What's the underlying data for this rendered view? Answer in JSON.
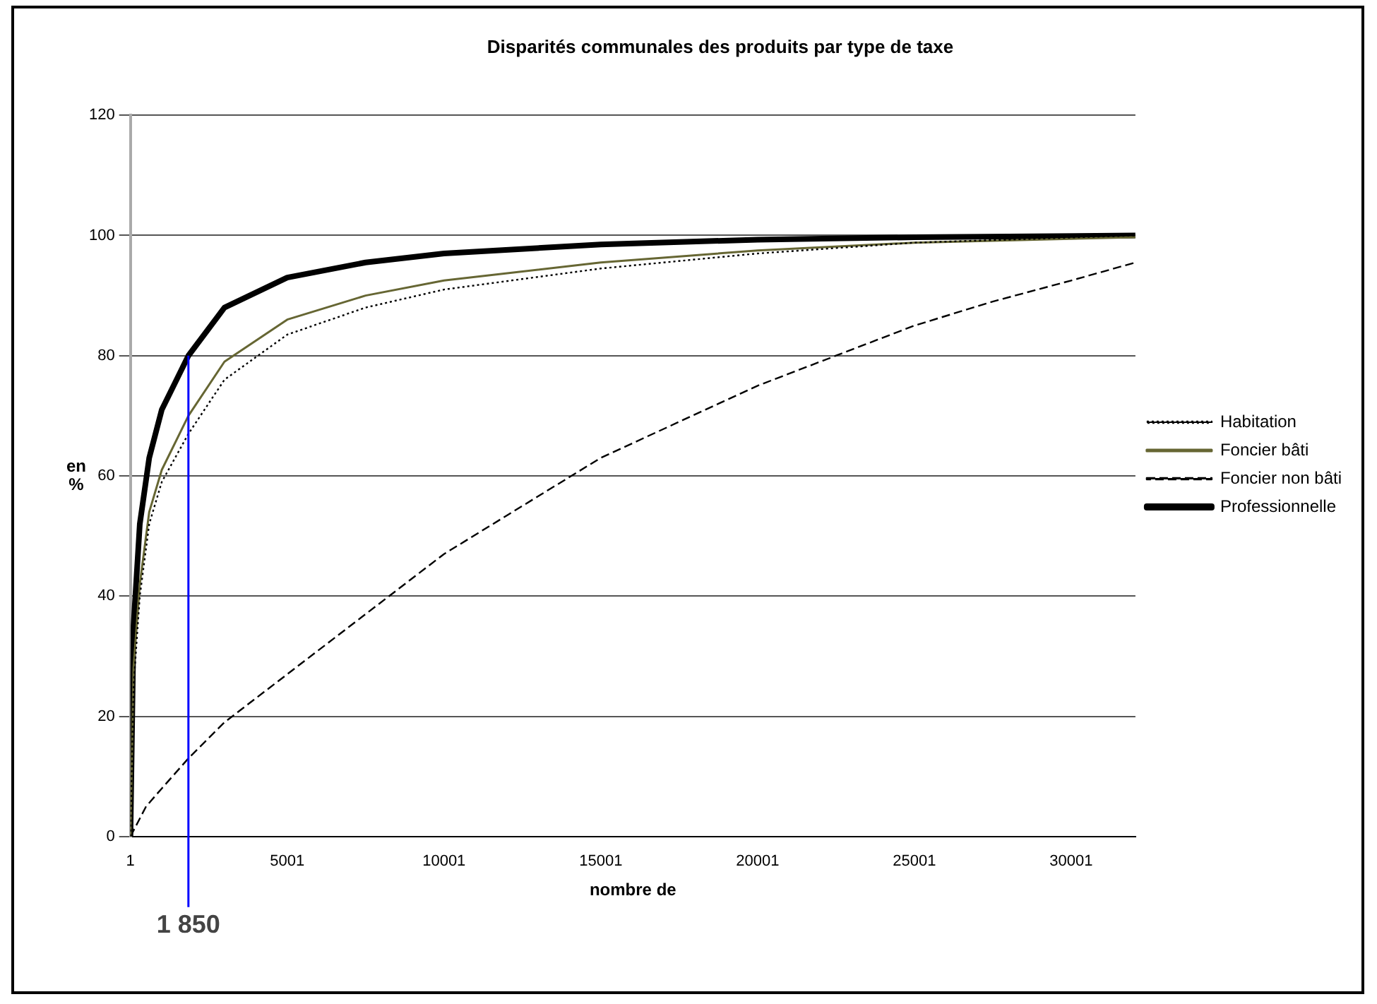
{
  "chart_data": {
    "type": "line",
    "title": "Disparités communales des produits par type de taxe",
    "xlabel": "nombre de",
    "ylabel": "en %",
    "xlim": [
      1,
      32050
    ],
    "xticks": [
      1,
      5001,
      10001,
      15001,
      20001,
      25001,
      30001
    ],
    "ylim": [
      0,
      120
    ],
    "yticks": [
      0,
      20,
      40,
      60,
      80,
      100,
      120
    ],
    "grid": "y",
    "legend": "right",
    "marker": "none",
    "series": [
      {
        "name": "Habitation",
        "color": "#000000",
        "line_style": "dotted",
        "x": [
          1,
          100,
          300,
          600,
          1001,
          1850,
          3000,
          5001,
          7500,
          10001,
          15001,
          20001,
          25001,
          32050
        ],
        "values": [
          0,
          25,
          40,
          52,
          59,
          67,
          76,
          83.5,
          88,
          91,
          94.5,
          97,
          98.8,
          100
        ]
      },
      {
        "name": "Foncier bâti",
        "color": "#666633",
        "line_style": "solid",
        "x": [
          1,
          100,
          300,
          600,
          1001,
          1850,
          3000,
          5001,
          7500,
          10001,
          15001,
          20001,
          25001,
          32050
        ],
        "values": [
          0,
          28,
          42,
          54,
          61,
          70,
          79,
          86,
          90,
          92.5,
          95.5,
          97.5,
          98.8,
          99.7
        ]
      },
      {
        "name": "Foncier non bâti",
        "color": "#000000",
        "line_style": "dashed",
        "x": [
          1,
          500,
          1001,
          1850,
          3000,
          5001,
          7500,
          10001,
          12500,
          15001,
          17500,
          20001,
          22500,
          25001,
          27500,
          30001,
          32050
        ],
        "values": [
          0,
          5,
          8,
          13,
          19,
          27,
          37,
          47,
          55,
          63,
          69,
          75,
          80,
          85,
          89,
          92.5,
          95.5
        ]
      },
      {
        "name": "Professionnelle",
        "color": "#000000",
        "line_style": "solid",
        "x": [
          1,
          100,
          300,
          600,
          1001,
          1850,
          3000,
          5001,
          7500,
          10001,
          15001,
          20001,
          25001,
          32050
        ],
        "values": [
          0,
          35,
          52,
          63,
          71,
          80,
          88,
          93,
          95.5,
          97,
          98.5,
          99.3,
          99.7,
          100
        ]
      }
    ],
    "ref_lines": [
      {
        "axis": "x",
        "value": 1850,
        "label": "1 850",
        "color": "#0000ff",
        "line_style": "solid"
      }
    ]
  }
}
